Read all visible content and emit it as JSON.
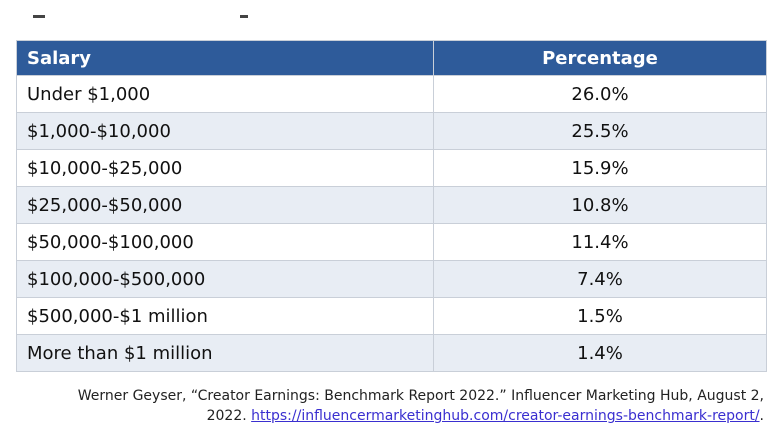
{
  "table": {
    "headers": {
      "salary": "Salary",
      "percentage": "Percentage"
    },
    "rows": [
      {
        "salary": "Under $1,000",
        "percentage": "26.0%"
      },
      {
        "salary": "$1,000-$10,000",
        "percentage": "25.5%"
      },
      {
        "salary": "$10,000-$25,000",
        "percentage": "15.9%"
      },
      {
        "salary": "$25,000-$50,000",
        "percentage": "10.8%"
      },
      {
        "salary": "$50,000-$100,000",
        "percentage": "11.4%"
      },
      {
        "salary": "$100,000-$500,000",
        "percentage": "7.4%"
      },
      {
        "salary": "$500,000-$1 million",
        "percentage": "1.5%"
      },
      {
        "salary": "More than $1 million",
        "percentage": "1.4%"
      }
    ]
  },
  "citation": {
    "line1": "Werner Geyser, “Creator Earnings: Benchmark Report 2022.” Influencer Marketing Hub, August 2,",
    "line2_prefix": "2022. ",
    "link_text": "https://influencermarketinghub.com/creator-earnings-benchmark-report/",
    "line2_suffix": "."
  },
  "colors": {
    "header_bg": "#2e5b9a",
    "stripe_bg": "#e8edf4",
    "link": "#3a2fd0"
  }
}
